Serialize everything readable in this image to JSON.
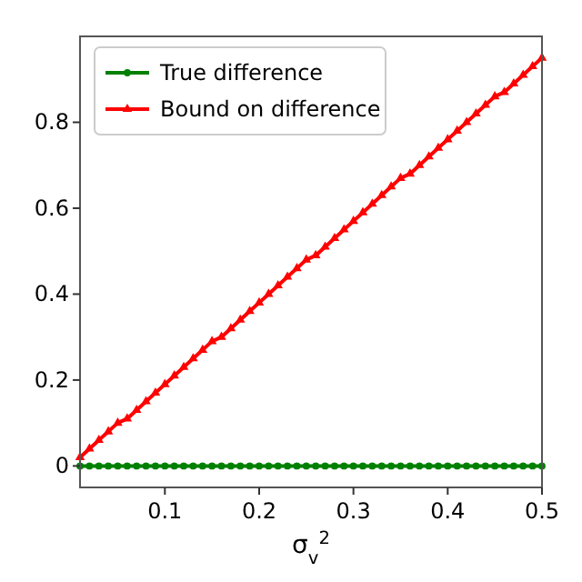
{
  "chart_data": {
    "type": "line",
    "xlabel": "σ$_{v}$$^{2}$",
    "x": [
      0.01,
      0.02,
      0.03,
      0.04,
      0.05,
      0.06,
      0.07,
      0.08,
      0.09,
      0.1,
      0.11,
      0.12,
      0.13,
      0.14,
      0.15,
      0.16,
      0.17,
      0.18,
      0.19,
      0.2,
      0.21,
      0.22,
      0.23,
      0.24,
      0.25,
      0.26,
      0.27,
      0.28,
      0.29,
      0.3,
      0.31,
      0.32,
      0.33,
      0.34,
      0.35,
      0.36,
      0.37,
      0.38,
      0.39,
      0.4,
      0.41,
      0.42,
      0.43,
      0.44,
      0.45,
      0.46,
      0.47,
      0.48,
      0.49,
      0.5
    ],
    "series": [
      {
        "name": "True difference",
        "color": "#008000",
        "marker": "circle",
        "values": [
          0,
          0,
          0,
          0,
          0,
          0,
          0,
          0,
          0,
          0,
          0,
          0,
          0,
          0,
          0,
          0,
          0,
          0,
          0,
          0,
          0,
          0,
          0,
          0,
          0,
          0,
          0,
          0,
          0,
          0,
          0,
          0,
          0,
          0,
          0,
          0,
          0,
          0,
          0,
          0,
          0,
          0,
          0,
          0,
          0,
          0,
          0,
          0,
          0,
          0
        ]
      },
      {
        "name": "Bound on difference",
        "color": "#ff0000",
        "marker": "triangle",
        "values": [
          0.02,
          0.04,
          0.06,
          0.08,
          0.1,
          0.11,
          0.13,
          0.15,
          0.17,
          0.19,
          0.21,
          0.23,
          0.25,
          0.27,
          0.29,
          0.3,
          0.32,
          0.34,
          0.36,
          0.38,
          0.4,
          0.42,
          0.44,
          0.46,
          0.48,
          0.49,
          0.51,
          0.53,
          0.55,
          0.57,
          0.59,
          0.61,
          0.63,
          0.65,
          0.67,
          0.68,
          0.7,
          0.72,
          0.74,
          0.76,
          0.78,
          0.8,
          0.82,
          0.84,
          0.86,
          0.87,
          0.89,
          0.91,
          0.93,
          0.95
        ]
      }
    ],
    "xlim": [
      0.01,
      0.5
    ],
    "xticks": [
      0.1,
      0.2,
      0.3,
      0.4,
      0.5
    ],
    "ylim": [
      -0.05,
      1.0
    ],
    "yticks": [
      0.0,
      {
        "value": 0.2,
        "label": "0.2"
      },
      {
        "value": 0.4,
        "label": "0.4"
      },
      {
        "value": 0.6,
        "label": "0.6"
      },
      {
        "value": 0.8,
        "label": "0.8"
      }
    ],
    "legend": "top left",
    "grid": false
  }
}
